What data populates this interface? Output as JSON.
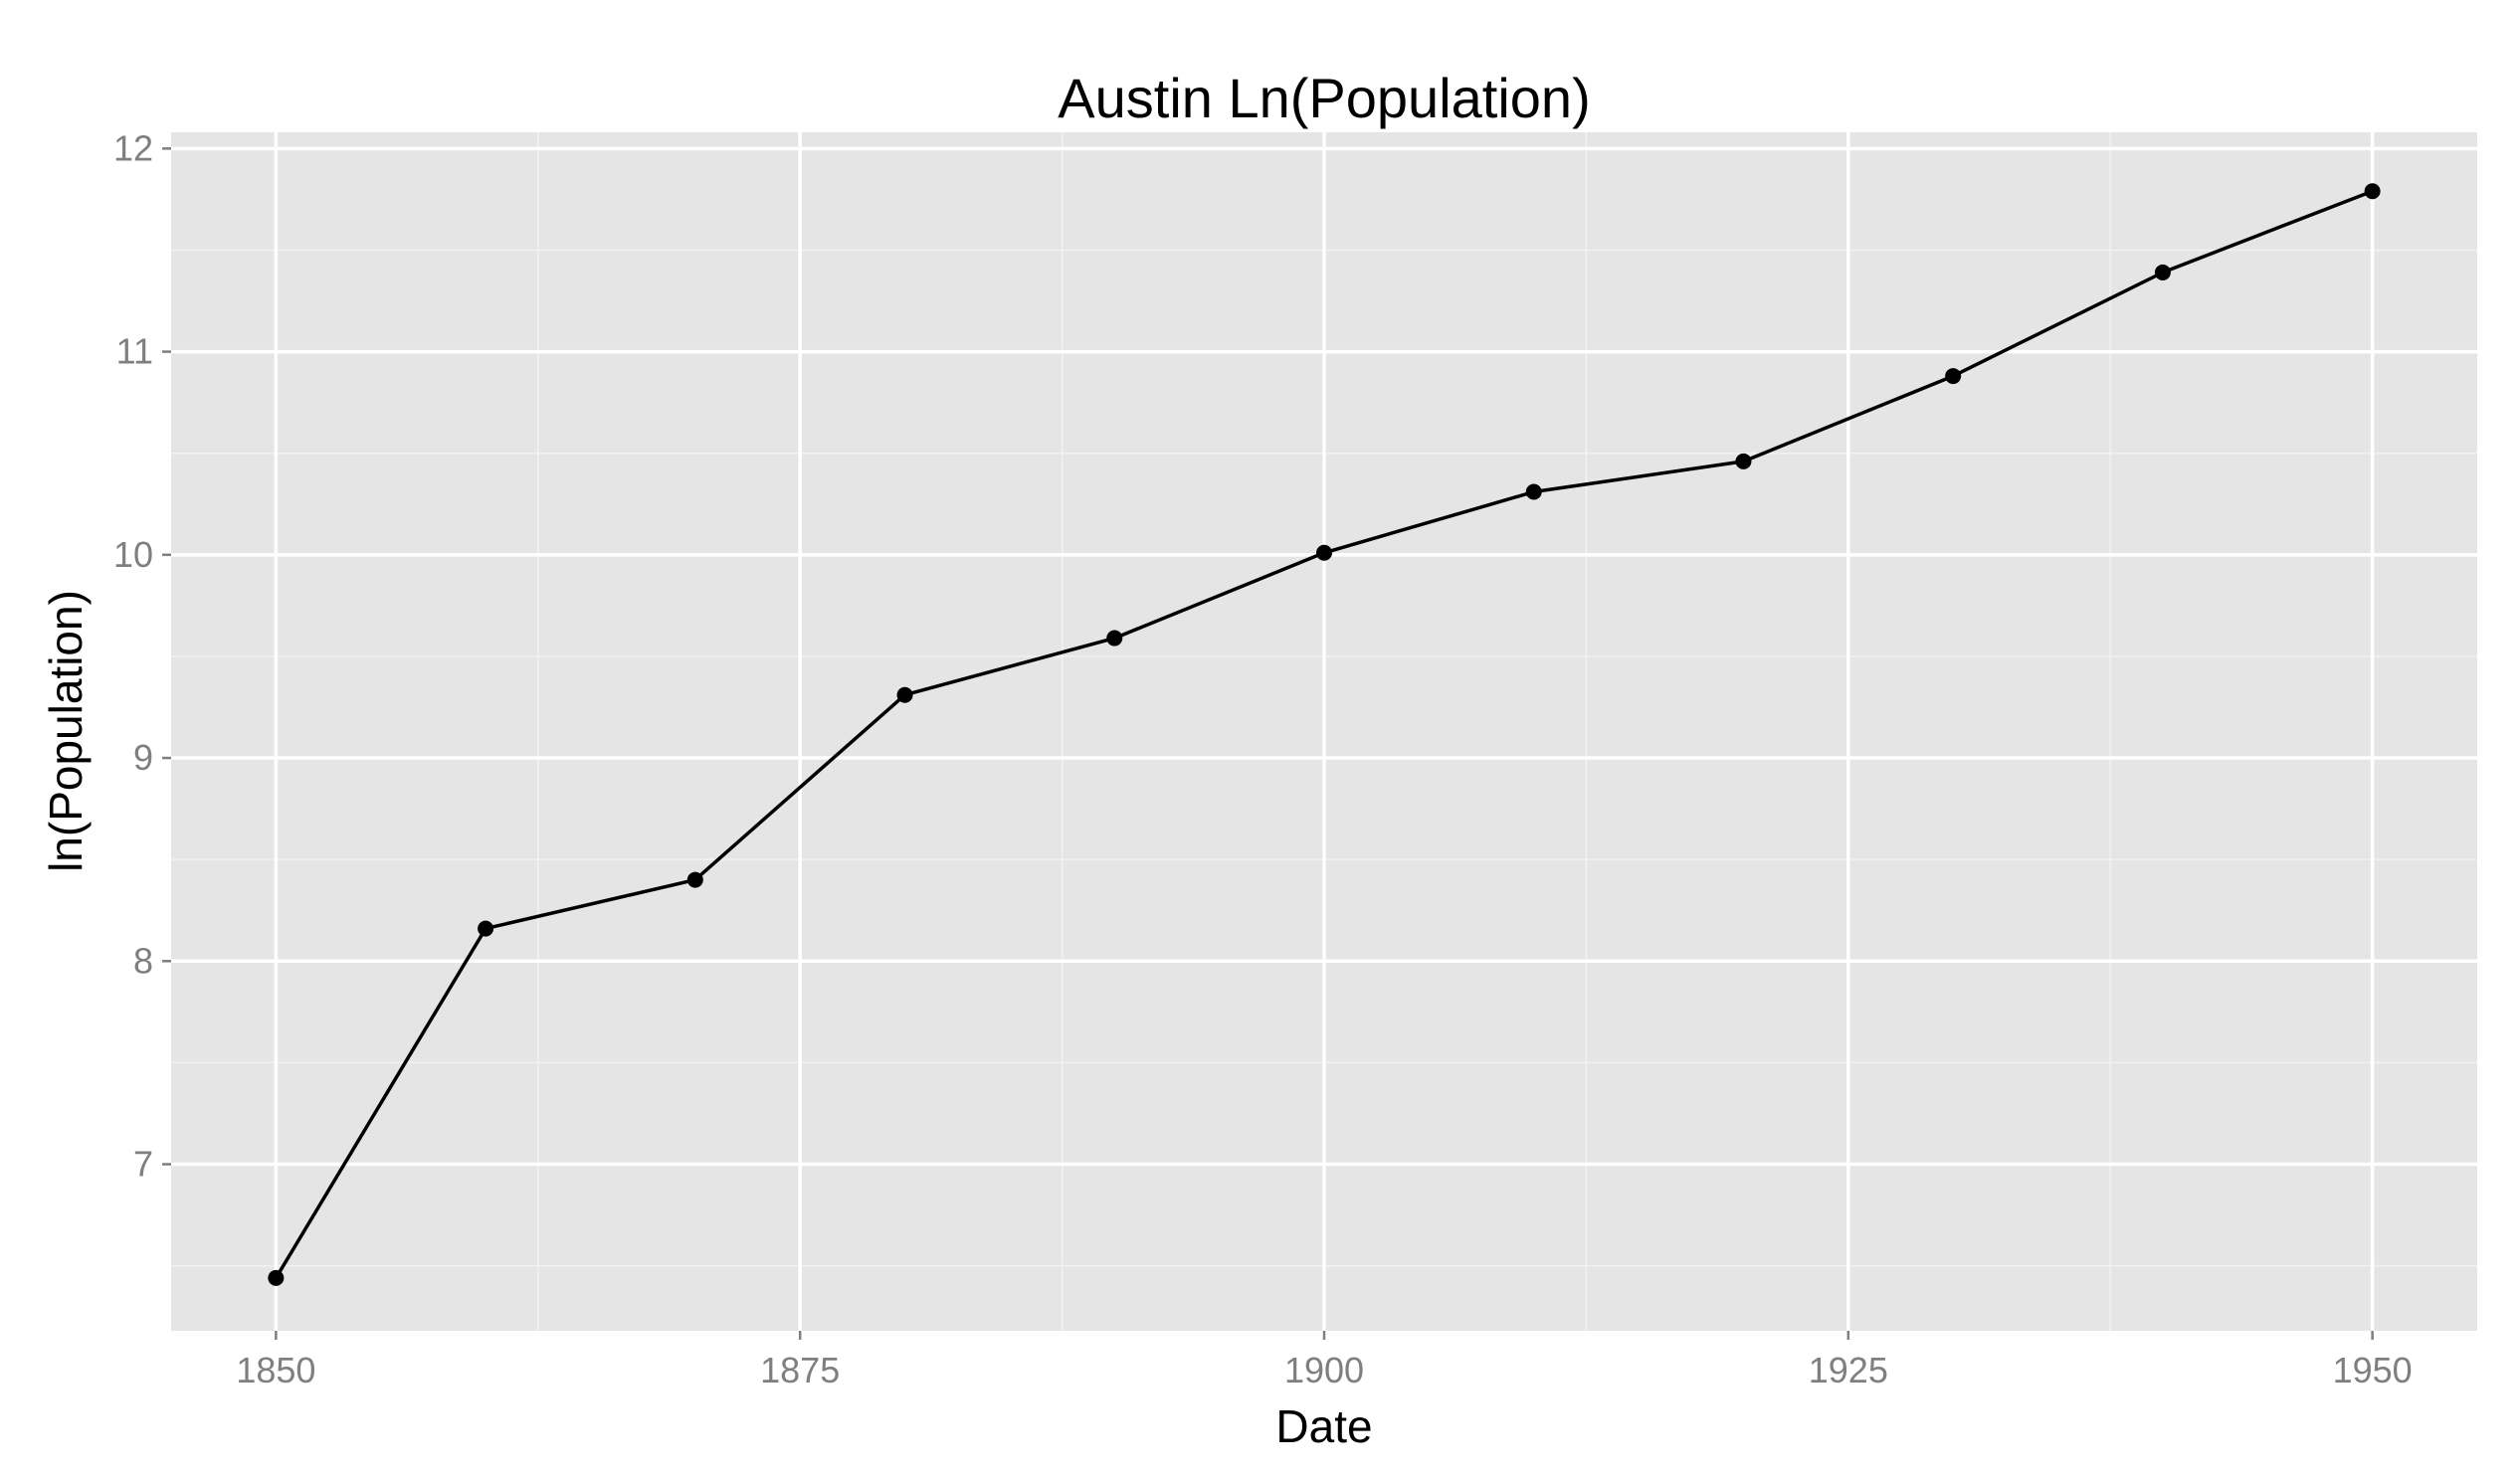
{
  "chart_data": {
    "type": "line",
    "title": "Austin Ln(Population)",
    "xlabel": "Date",
    "ylabel": "ln(Population)",
    "x_ticks": [
      1850,
      1875,
      1900,
      1925,
      1950
    ],
    "y_ticks": [
      7,
      8,
      9,
      10,
      11,
      12
    ],
    "xlim": [
      1845,
      1955
    ],
    "ylim": [
      6.18,
      12.08
    ],
    "grid": true,
    "legend": "none",
    "colors": {
      "panel": "#e5e5e5",
      "grid_major": "#ffffff",
      "grid_minor": "#f2f2f2",
      "line": "#000000",
      "tick_label": "#7f7f7f"
    },
    "series": [
      {
        "x": [
          1850,
          1860,
          1870,
          1880,
          1890,
          1900,
          1910,
          1920,
          1930,
          1940,
          1950
        ],
        "values": [
          6.44,
          8.16,
          8.4,
          9.31,
          9.59,
          10.01,
          10.31,
          10.46,
          10.88,
          11.39,
          11.79
        ]
      }
    ]
  }
}
